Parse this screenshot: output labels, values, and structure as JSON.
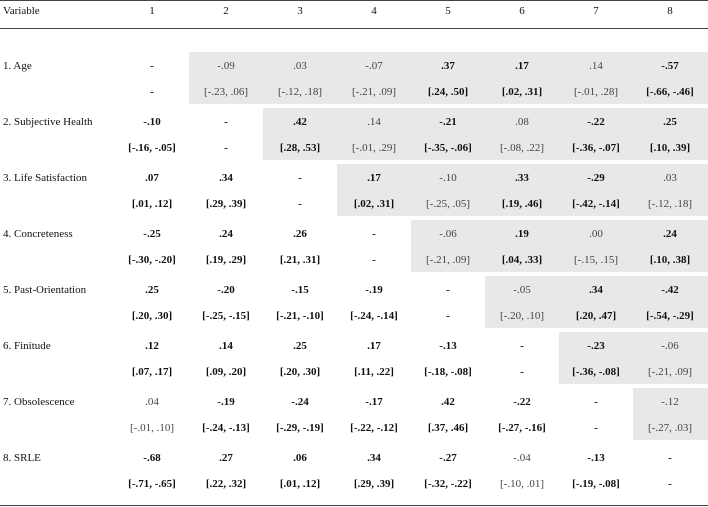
{
  "table": {
    "header": [
      "Variable",
      "1",
      "2",
      "3",
      "4",
      "5",
      "6",
      "7",
      "8"
    ],
    "rows": [
      {
        "label": "1. Age",
        "cells": [
          {
            "r": "-",
            "ci": "-",
            "bold": true
          },
          {
            "r": "-.09",
            "ci": "[-.23, .06]",
            "bold": false
          },
          {
            "r": ".03",
            "ci": "[-.12, .18]",
            "bold": false
          },
          {
            "r": "-.07",
            "ci": "[-.21, .09]",
            "bold": false
          },
          {
            "r": ".37",
            "ci": "[.24, .50]",
            "bold": true
          },
          {
            "r": ".17",
            "ci": "[.02, .31]",
            "bold": true
          },
          {
            "r": ".14",
            "ci": "[-.01, .28]",
            "bold": false
          },
          {
            "r": "-.57",
            "ci": "[-.66, -.46]",
            "bold": true
          }
        ]
      },
      {
        "label": "2. Subjective Health",
        "cells": [
          {
            "r": "-.10",
            "ci": "[-.16, -.05]",
            "bold": true
          },
          {
            "r": "-",
            "ci": "-",
            "bold": true
          },
          {
            "r": ".42",
            "ci": "[.28, .53]",
            "bold": true
          },
          {
            "r": ".14",
            "ci": "[-.01, .29]",
            "bold": false
          },
          {
            "r": "-.21",
            "ci": "[-.35, -.06]",
            "bold": true
          },
          {
            "r": ".08",
            "ci": "[-.08, .22]",
            "bold": false
          },
          {
            "r": "-.22",
            "ci": "[-.36, -.07]",
            "bold": true
          },
          {
            "r": ".25",
            "ci": "[.10, .39]",
            "bold": true
          }
        ]
      },
      {
        "label": "3. Life Satisfaction",
        "cells": [
          {
            "r": ".07",
            "ci": "[.01, .12]",
            "bold": true
          },
          {
            "r": ".34",
            "ci": "[.29, .39]",
            "bold": true
          },
          {
            "r": "-",
            "ci": "-",
            "bold": true
          },
          {
            "r": ".17",
            "ci": "[.02, .31]",
            "bold": true
          },
          {
            "r": "-.10",
            "ci": "[-.25, .05]",
            "bold": false
          },
          {
            "r": ".33",
            "ci": "[.19, .46]",
            "bold": true
          },
          {
            "r": "-.29",
            "ci": "[-.42, -.14]",
            "bold": true
          },
          {
            "r": ".03",
            "ci": "[-.12, .18]",
            "bold": false
          }
        ]
      },
      {
        "label": "4. Concreteness",
        "cells": [
          {
            "r": "-.25",
            "ci": "[-.30, -.20]",
            "bold": true
          },
          {
            "r": ".24",
            "ci": "[.19, .29]",
            "bold": true
          },
          {
            "r": ".26",
            "ci": "[.21, .31]",
            "bold": true
          },
          {
            "r": "-",
            "ci": "-",
            "bold": true
          },
          {
            "r": "-.06",
            "ci": "[-.21, .09]",
            "bold": false
          },
          {
            "r": ".19",
            "ci": "[.04, .33]",
            "bold": true
          },
          {
            "r": ".00",
            "ci": "[-.15, .15]",
            "bold": false
          },
          {
            "r": ".24",
            "ci": "[.10, .38]",
            "bold": true
          }
        ]
      },
      {
        "label": "5. Past-Orientation",
        "cells": [
          {
            "r": ".25",
            "ci": "[.20, .30]",
            "bold": true
          },
          {
            "r": "-.20",
            "ci": "[-.25, -.15]",
            "bold": true
          },
          {
            "r": "-.15",
            "ci": "[-.21, -.10]",
            "bold": true
          },
          {
            "r": "-.19",
            "ci": "[-.24, -.14]",
            "bold": true
          },
          {
            "r": "-",
            "ci": "-",
            "bold": true
          },
          {
            "r": "-.05",
            "ci": "[-.20, .10]",
            "bold": false
          },
          {
            "r": ".34",
            "ci": "[.20, .47]",
            "bold": true
          },
          {
            "r": "-.42",
            "ci": "[-.54, -.29]",
            "bold": true
          }
        ]
      },
      {
        "label": "6. Finitude",
        "cells": [
          {
            "r": ".12",
            "ci": "[.07, .17]",
            "bold": true
          },
          {
            "r": ".14",
            "ci": "[.09, .20]",
            "bold": true
          },
          {
            "r": ".25",
            "ci": "[.20, .30]",
            "bold": true
          },
          {
            "r": ".17",
            "ci": "[.11, .22]",
            "bold": true
          },
          {
            "r": "-.13",
            "ci": "[-.18, -.08]",
            "bold": true
          },
          {
            "r": "-",
            "ci": "-",
            "bold": true
          },
          {
            "r": "-.23",
            "ci": "[-.36, -.08]",
            "bold": true
          },
          {
            "r": "-.06",
            "ci": "[-.21, .09]",
            "bold": false
          }
        ]
      },
      {
        "label": "7. Obsolescence",
        "cells": [
          {
            "r": ".04",
            "ci": "[-.01, .10]",
            "bold": false
          },
          {
            "r": "-.19",
            "ci": "[-.24, -.13]",
            "bold": true
          },
          {
            "r": "-.24",
            "ci": "[-.29, -.19]",
            "bold": true
          },
          {
            "r": "-.17",
            "ci": "[-.22, -.12]",
            "bold": true
          },
          {
            "r": ".42",
            "ci": "[.37, .46]",
            "bold": true
          },
          {
            "r": "-.22",
            "ci": "[-.27, -.16]",
            "bold": true
          },
          {
            "r": "-",
            "ci": "-",
            "bold": true
          },
          {
            "r": "-.12",
            "ci": "[-.27, .03]",
            "bold": false
          }
        ]
      },
      {
        "label": "8. SRLE",
        "cells": [
          {
            "r": "-.68",
            "ci": "[-.71, -.65]",
            "bold": true
          },
          {
            "r": ".27",
            "ci": "[.22, .32]",
            "bold": true
          },
          {
            "r": ".06",
            "ci": "[.01, .12]",
            "bold": true
          },
          {
            "r": ".34",
            "ci": "[.29, .39]",
            "bold": true
          },
          {
            "r": "-.27",
            "ci": "[-.32, -.22]",
            "bold": true
          },
          {
            "r": "-.04",
            "ci": "[-.10, .01]",
            "bold": false
          },
          {
            "r": "-.13",
            "ci": "[-.19, -.08]",
            "bold": true
          },
          {
            "r": "-",
            "ci": "-",
            "bold": true
          }
        ]
      }
    ]
  }
}
